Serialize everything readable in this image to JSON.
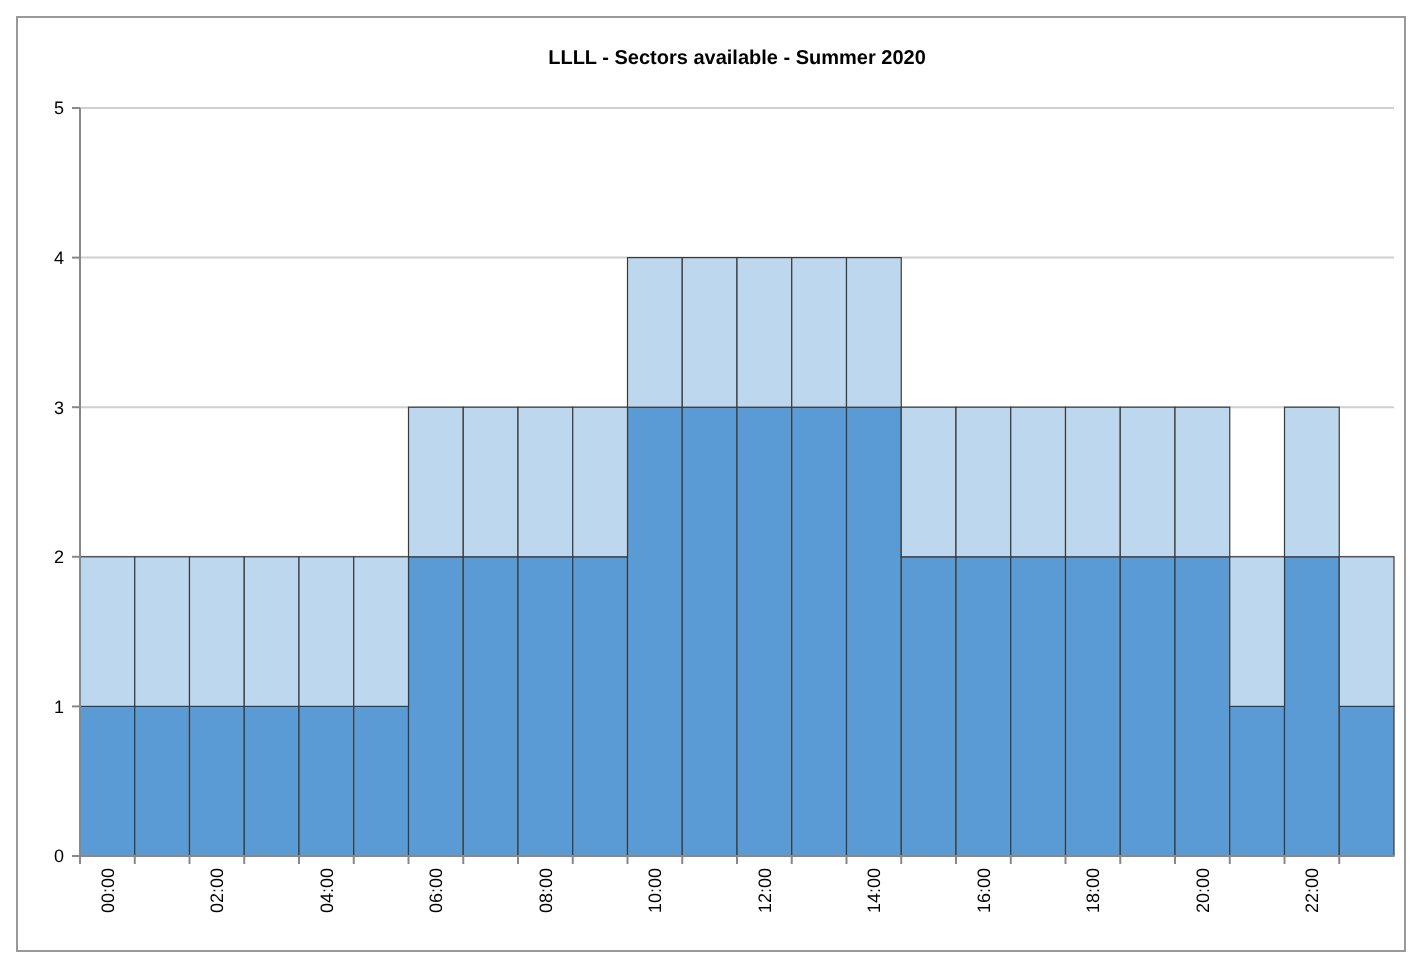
{
  "chart_data": {
    "type": "bar",
    "title": "LLLL - Sectors available - Summer 2020",
    "stacked": true,
    "grid": "y",
    "categories": [
      "00:00",
      null,
      "02:00",
      null,
      "04:00",
      null,
      "06:00",
      null,
      "08:00",
      null,
      "10:00",
      null,
      "12:00",
      null,
      "14:00",
      null,
      "16:00",
      null,
      "18:00",
      null,
      "20:00",
      null,
      "22:00",
      null
    ],
    "series": [
      {
        "color": "#5b9bd5",
        "values": [
          1,
          1,
          1,
          1,
          1,
          1,
          2,
          2,
          2,
          2,
          3,
          3,
          3,
          3,
          3,
          2,
          2,
          2,
          2,
          2,
          2,
          1,
          2,
          1
        ]
      },
      {
        "color": "#bdd7ee",
        "values": [
          1,
          1,
          1,
          1,
          1,
          1,
          1,
          1,
          1,
          1,
          1,
          1,
          1,
          1,
          1,
          1,
          1,
          1,
          1,
          1,
          1,
          1,
          1,
          1
        ]
      }
    ],
    "ylim": [
      0,
      5
    ],
    "yticks": [
      0,
      1,
      2,
      3,
      4,
      5
    ]
  }
}
